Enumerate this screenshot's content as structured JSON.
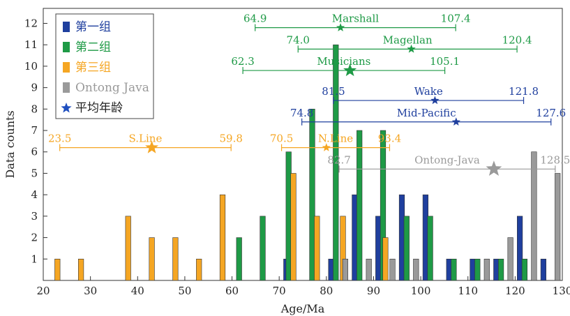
{
  "chart_data": {
    "type": "bar",
    "xlabel": "Age/Ma",
    "ylabel": "Data counts",
    "xlim": [
      20,
      130
    ],
    "ylim": [
      0,
      12.7
    ],
    "xticks": [
      20,
      30,
      40,
      50,
      60,
      70,
      80,
      90,
      100,
      110,
      120,
      130
    ],
    "yticks": [
      1,
      2,
      3,
      4,
      5,
      6,
      7,
      8,
      9,
      10,
      11,
      12
    ],
    "legend_position": "top-left",
    "colors": {
      "group1": "#1f3f9e",
      "group2": "#1e9a46",
      "group3": "#f5a623",
      "ontong": "#9a9a9a",
      "mean": "#1f4fbf"
    },
    "legend": [
      {
        "key": "group1",
        "label": "第一组"
      },
      {
        "key": "group2",
        "label": "第二组"
      },
      {
        "key": "group3",
        "label": "第三组"
      },
      {
        "key": "ontong",
        "label": "Ontong Java"
      },
      {
        "key": "mean",
        "label": "平均年龄"
      }
    ],
    "series": [
      {
        "key": "group1",
        "points": [
          [
            71.5,
            1
          ],
          [
            81,
            1
          ],
          [
            86,
            4
          ],
          [
            91,
            3
          ],
          [
            96,
            4
          ],
          [
            101,
            4
          ],
          [
            106,
            1
          ],
          [
            111,
            1
          ],
          [
            116,
            1
          ],
          [
            121,
            3
          ],
          [
            126,
            1
          ]
        ]
      },
      {
        "key": "group2",
        "points": [
          [
            61.5,
            2
          ],
          [
            66.5,
            3
          ],
          [
            72,
            6
          ],
          [
            77,
            8
          ],
          [
            82,
            11
          ],
          [
            87,
            7
          ],
          [
            92,
            7
          ],
          [
            97,
            3
          ],
          [
            102,
            3
          ],
          [
            107,
            1
          ],
          [
            112,
            1
          ],
          [
            117,
            1
          ],
          [
            122,
            1
          ]
        ]
      },
      {
        "key": "group3",
        "points": [
          [
            23,
            1
          ],
          [
            28,
            1
          ],
          [
            38,
            3
          ],
          [
            43,
            2
          ],
          [
            48,
            2
          ],
          [
            53,
            1
          ],
          [
            58,
            4
          ],
          [
            73,
            5
          ],
          [
            78,
            3
          ],
          [
            83.5,
            3
          ],
          [
            92.5,
            2
          ]
        ]
      },
      {
        "key": "ontong",
        "points": [
          [
            84,
            1
          ],
          [
            89,
            1
          ],
          [
            94,
            1
          ],
          [
            99,
            1
          ],
          [
            114,
            1
          ],
          [
            119,
            2
          ],
          [
            124,
            6
          ],
          [
            129,
            5
          ]
        ]
      }
    ],
    "ranges": [
      {
        "name": "Marshall",
        "group": "group2",
        "min": 64.9,
        "max": 107.4,
        "mean": 83.0,
        "y": 11.8,
        "min_label": "64.9",
        "max_label": "107.4",
        "star": "small"
      },
      {
        "name": "Magellan",
        "group": "group2",
        "min": 74.0,
        "max": 120.4,
        "mean": 98.0,
        "y": 10.8,
        "min_label": "74.0",
        "max_label": "120.4",
        "star": "small"
      },
      {
        "name": "Musicians",
        "group": "group2",
        "min": 62.3,
        "max": 105.1,
        "mean": 85.0,
        "y": 9.8,
        "min_label": "62.3",
        "max_label": "105.1",
        "star": "large"
      },
      {
        "name": "Wake",
        "group": "group1",
        "min": 81.5,
        "max": 121.8,
        "mean": 103.0,
        "y": 8.4,
        "min_label": "81.5",
        "max_label": "121.8",
        "star": "small"
      },
      {
        "name": "Mid-Pacific",
        "group": "group1",
        "min": 74.8,
        "max": 127.6,
        "mean": 107.5,
        "y": 7.4,
        "min_label": "74.8",
        "max_label": "127.6",
        "star": "small"
      },
      {
        "name": "S.Line",
        "group": "group3",
        "min": 23.5,
        "max": 59.8,
        "mean": 43.0,
        "y": 6.2,
        "min_label": "23.5",
        "max_label": "59.8",
        "star": "large"
      },
      {
        "name": "N.Line",
        "group": "group3",
        "min": 70.5,
        "max": 93.4,
        "mean": 80.0,
        "y": 6.2,
        "min_label": "70.5",
        "max_label": "93.4",
        "star": "small"
      },
      {
        "name": "Ontong-Java",
        "group": "ontong",
        "min": 82.7,
        "max": 128.5,
        "mean": 115.5,
        "y": 5.2,
        "min_label": "82.7",
        "max_label": "128.5",
        "star": "xlarge"
      }
    ]
  }
}
